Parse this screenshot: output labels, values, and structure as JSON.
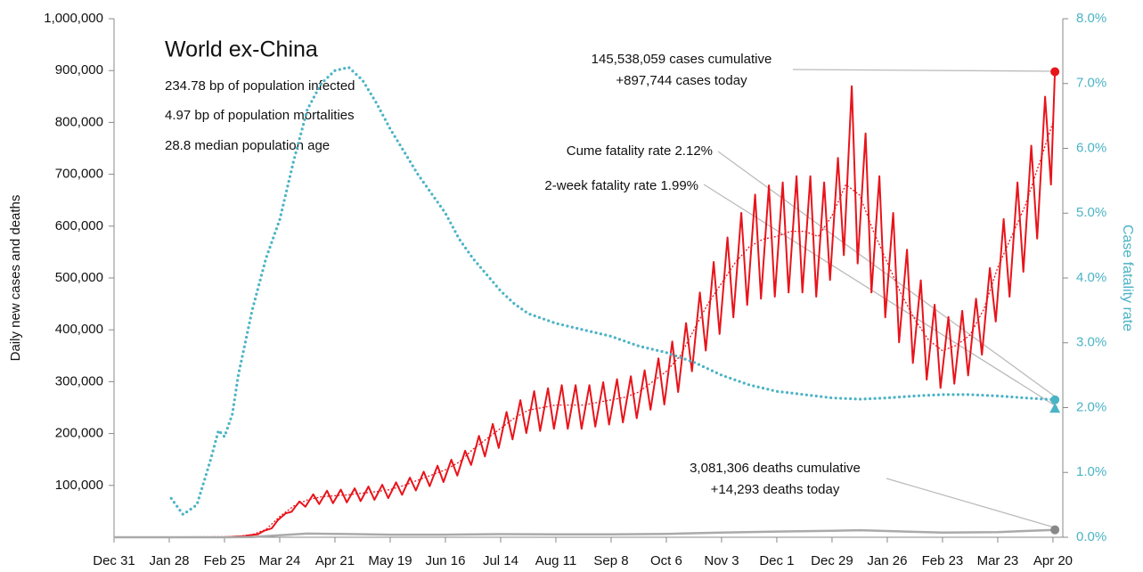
{
  "chart_data": {
    "type": "line",
    "title": "World ex-China",
    "subtitle_lines": [
      "234.78 bp of population infected",
      "4.97 bp of population mortalities",
      "28.8 median population age"
    ],
    "ylabel": "Daily new cases and deaths",
    "y2label": "Case fatality rate",
    "xlim": [
      0,
      481
    ],
    "xticks": [
      {
        "value": 0,
        "label": "Dec 31"
      },
      {
        "value": 28,
        "label": "Jan 28"
      },
      {
        "value": 56,
        "label": "Feb 25"
      },
      {
        "value": 84,
        "label": "Mar 24"
      },
      {
        "value": 112,
        "label": "Apr 21"
      },
      {
        "value": 140,
        "label": "May 19"
      },
      {
        "value": 168,
        "label": "Jun 16"
      },
      {
        "value": 196,
        "label": "Jul 14"
      },
      {
        "value": 224,
        "label": "Aug 11"
      },
      {
        "value": 252,
        "label": "Sep 8"
      },
      {
        "value": 280,
        "label": "Oct 6"
      },
      {
        "value": 308,
        "label": "Nov 3"
      },
      {
        "value": 336,
        "label": "Dec 1"
      },
      {
        "value": 364,
        "label": "Dec 29"
      },
      {
        "value": 392,
        "label": "Jan 26"
      },
      {
        "value": 420,
        "label": "Feb 23"
      },
      {
        "value": 448,
        "label": "Mar 23"
      },
      {
        "value": 476,
        "label": "Apr 20"
      }
    ],
    "ylim": [
      0,
      1000000
    ],
    "yticks": [
      {
        "value": 100000,
        "label": "100,000"
      },
      {
        "value": 200000,
        "label": "200,000"
      },
      {
        "value": 300000,
        "label": "300,000"
      },
      {
        "value": 400000,
        "label": "400,000"
      },
      {
        "value": 500000,
        "label": "500,000"
      },
      {
        "value": 600000,
        "label": "600,000"
      },
      {
        "value": 700000,
        "label": "700,000"
      },
      {
        "value": 800000,
        "label": "800,000"
      },
      {
        "value": 900000,
        "label": "900,000"
      },
      {
        "value": 1000000,
        "label": "1,000,000"
      }
    ],
    "y2lim": [
      0,
      8
    ],
    "y2ticks": [
      {
        "value": 0,
        "label": "0.0%"
      },
      {
        "value": 1,
        "label": "1.0%"
      },
      {
        "value": 2,
        "label": "2.0%"
      },
      {
        "value": 3,
        "label": "3.0%"
      },
      {
        "value": 4,
        "label": "4.0%"
      },
      {
        "value": 5,
        "label": "5.0%"
      },
      {
        "value": 6,
        "label": "6.0%"
      },
      {
        "value": 7,
        "label": "7.0%"
      },
      {
        "value": 8,
        "label": "8.0%"
      }
    ],
    "series": [
      {
        "color": "#e8141b",
        "style": "solid",
        "width": 2,
        "x": [
          0,
          56,
          62,
          66,
          69,
          73,
          76,
          80,
          83,
          87,
          90,
          94,
          97,
          101,
          104,
          108,
          111,
          115,
          118,
          122,
          125,
          129,
          132,
          136,
          139,
          143,
          146,
          150,
          153,
          157,
          160,
          164,
          167,
          171,
          174,
          178,
          181,
          185,
          188,
          192,
          195,
          199,
          202,
          206,
          209,
          213,
          216,
          220,
          223,
          227,
          230,
          234,
          237,
          241,
          244,
          248,
          251,
          255,
          258,
          262,
          265,
          269,
          272,
          276,
          279,
          283,
          286,
          290,
          293,
          297,
          300,
          304,
          307,
          311,
          314,
          318,
          321,
          325,
          328,
          332,
          335,
          339,
          342,
          346,
          349,
          353,
          356,
          360,
          363,
          367,
          370,
          374,
          377,
          381,
          384,
          388,
          391,
          395,
          398,
          402,
          405,
          409,
          412,
          416,
          419,
          423,
          426,
          430,
          433,
          437,
          440,
          444,
          447,
          451,
          454,
          458,
          461,
          465,
          468,
          472,
          475,
          477
        ],
        "values": [
          0,
          0,
          1600,
          2300,
          4100,
          5800,
          12300,
          17300,
          32800,
          46000,
          49200,
          69000,
          59000,
          82800,
          64000,
          89700,
          65600,
          92000,
          67200,
          94300,
          69700,
          97800,
          72200,
          101200,
          75400,
          105800,
          82000,
          115000,
          90200,
          126500,
          98400,
          138000,
          106600,
          149500,
          118900,
          166800,
          139400,
          195500,
          155800,
          218500,
          172200,
          241500,
          188600,
          264500,
          200900,
          281800,
          205000,
          287500,
          209100,
          293300,
          209100,
          293300,
          209100,
          293300,
          213200,
          299000,
          217300,
          304800,
          221400,
          310500,
          229600,
          322000,
          246000,
          345000,
          256000,
          377600,
          280000,
          413000,
          320000,
          472000,
          360000,
          531000,
          392000,
          578200,
          424000,
          625400,
          448000,
          660800,
          460000,
          678500,
          464000,
          684400,
          472000,
          696200,
          472000,
          696200,
          464000,
          684400,
          496000,
          731600,
          544000,
          870000,
          528000,
          778800,
          472000,
          696200,
          424000,
          625400,
          376000,
          554600,
          336000,
          495600,
          304000,
          448400,
          288000,
          424800,
          296000,
          436600,
          312000,
          460200,
          352000,
          519200,
          416000,
          613600,
          464000,
          684400,
          512000,
          755200,
          576000,
          849600,
          680000,
          897744
        ]
      },
      {
        "color": "#e8141b",
        "style": "dotted",
        "width": 1.3,
        "x": [
          0,
          56,
          63,
          70,
          77,
          84,
          91,
          98,
          105,
          112,
          119,
          126,
          133,
          140,
          147,
          154,
          161,
          168,
          175,
          182,
          189,
          196,
          203,
          210,
          217,
          224,
          231,
          238,
          245,
          252,
          259,
          266,
          273,
          280,
          287,
          294,
          301,
          308,
          315,
          322,
          329,
          336,
          343,
          350,
          357,
          364,
          371,
          378,
          385,
          392,
          399,
          406,
          413,
          420,
          427,
          434,
          441,
          448,
          455,
          462,
          469,
          476
        ],
        "values": [
          0,
          1000,
          2000,
          5000,
          15000,
          40000,
          60000,
          72000,
          78000,
          80000,
          82000,
          85000,
          88000,
          92000,
          100000,
          110000,
          120000,
          130000,
          145000,
          170000,
          190000,
          210000,
          230000,
          245000,
          250000,
          255000,
          255000,
          255000,
          260000,
          265000,
          270000,
          280000,
          300000,
          320000,
          350000,
          400000,
          450000,
          490000,
          530000,
          560000,
          575000,
          580000,
          590000,
          590000,
          580000,
          620000,
          680000,
          660000,
          590000,
          530000,
          470000,
          420000,
          380000,
          360000,
          370000,
          390000,
          440000,
          520000,
          580000,
          640000,
          720000,
          800000
        ]
      },
      {
        "color": "#aaaaaa",
        "style": "solid",
        "width": 2.5,
        "x": [
          0,
          56,
          70,
          84,
          98,
          112,
          140,
          168,
          196,
          224,
          252,
          280,
          308,
          336,
          364,
          378,
          392,
          420,
          448,
          477
        ],
        "values": [
          0,
          0,
          500,
          4000,
          7000,
          6500,
          5000,
          5000,
          6000,
          5500,
          5500,
          6500,
          9000,
          11000,
          12500,
          13500,
          12000,
          9000,
          10000,
          14293
        ]
      },
      {
        "color": "#4bb3c5",
        "style": "dots",
        "width": 3.2,
        "axis": "y2",
        "x": [
          29,
          35,
          42,
          49,
          53,
          56,
          60,
          63,
          70,
          77,
          84,
          91,
          98,
          105,
          112,
          119,
          126,
          133,
          140,
          147,
          154,
          161,
          168,
          175,
          182,
          189,
          196,
          203,
          210,
          224,
          238,
          252,
          266,
          280,
          294,
          308,
          322,
          336,
          350,
          364,
          378,
          392,
          406,
          420,
          434,
          448,
          462,
          477
        ],
        "values": [
          0.6,
          0.35,
          0.5,
          1.2,
          1.65,
          1.55,
          1.9,
          2.5,
          3.5,
          4.3,
          4.9,
          5.8,
          6.6,
          7.0,
          7.2,
          7.25,
          7.05,
          6.7,
          6.3,
          5.95,
          5.6,
          5.3,
          5.0,
          4.6,
          4.3,
          4.05,
          3.8,
          3.6,
          3.45,
          3.3,
          3.2,
          3.1,
          2.95,
          2.85,
          2.7,
          2.5,
          2.35,
          2.25,
          2.2,
          2.15,
          2.13,
          2.15,
          2.18,
          2.2,
          2.2,
          2.18,
          2.15,
          2.12
        ]
      }
    ],
    "points": [
      {
        "x": 477,
        "value": 897744,
        "color": "#e8141b",
        "shape": "circle"
      },
      {
        "x": 477,
        "value": 2.12,
        "axis": "y2",
        "color": "#4bb3c5",
        "shape": "circle"
      },
      {
        "x": 477,
        "value": 1.99,
        "axis": "y2",
        "color": "#4bb3c5",
        "shape": "triangle"
      },
      {
        "x": 477,
        "value": 14293,
        "color": "#888888",
        "shape": "circle"
      }
    ],
    "annotations": [
      "145,538,059  cases cumulative",
      "+897,744  cases today",
      "Cume fatality rate 2.12%",
      "2-week fatality rate 1.99%",
      "3,081,306  deaths cumulative",
      "+14,293  deaths today"
    ]
  }
}
